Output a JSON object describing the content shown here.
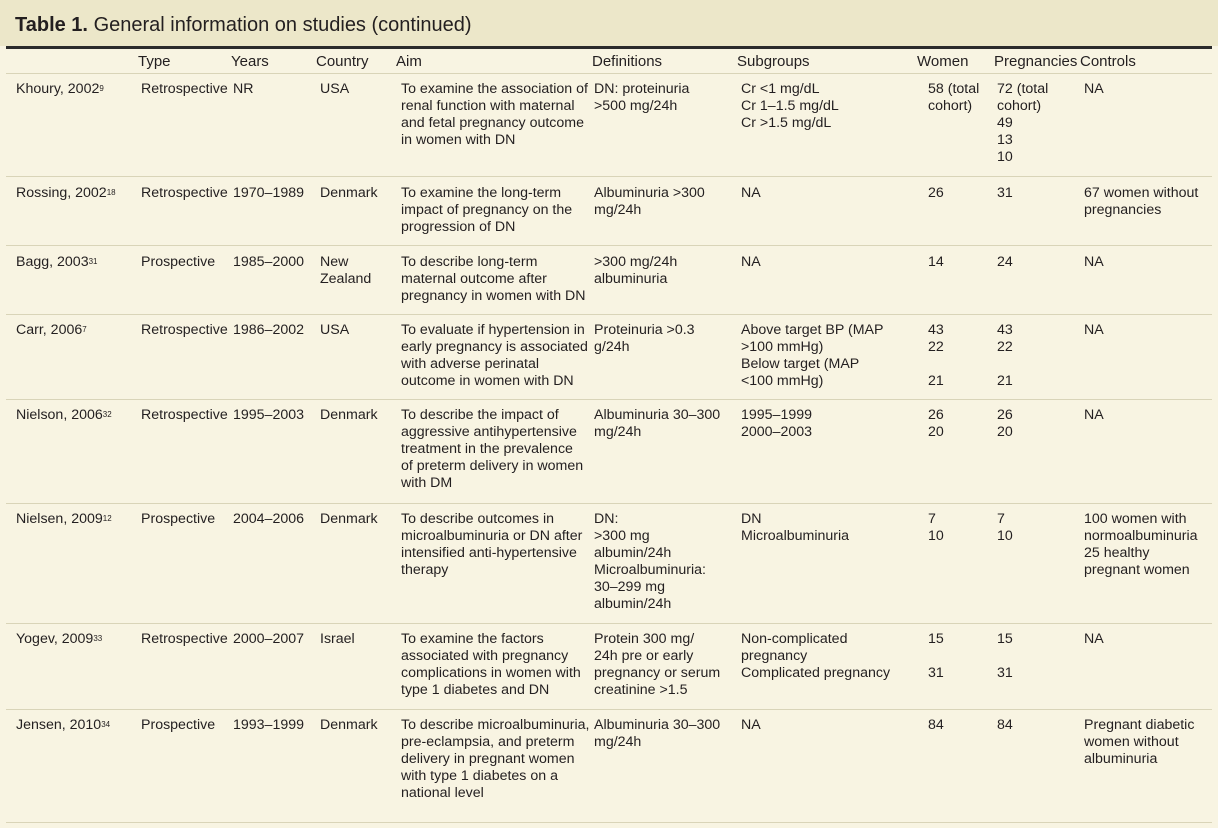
{
  "title": {
    "label": "Table 1.",
    "text": "General information on studies (continued)"
  },
  "headers": [
    "",
    "Type",
    "Years",
    "Country",
    "Aim",
    "Definitions",
    "Subgroups",
    "Women",
    "Pregnancies",
    "Controls"
  ],
  "rows": [
    {
      "study": "Khoury, 2002",
      "ref": "9",
      "type": [
        "Retrospective"
      ],
      "years": [
        "NR"
      ],
      "country": [
        "USA"
      ],
      "aim": [
        "To examine the association of",
        "renal function with maternal",
        "and fetal pregnancy outcome",
        "in women with DN"
      ],
      "definitions": [
        "DN: proteinuria",
        ">500 mg/24h"
      ],
      "subgroups": [
        "Cr <1 mg/dL",
        "Cr 1–1.5 mg/dL",
        "Cr >1.5 mg/dL"
      ],
      "women": [
        "58 (total",
        "cohort)"
      ],
      "pregnancies": [
        "72 (total",
        "cohort)",
        "49",
        "13",
        "10"
      ],
      "controls": [
        "NA"
      ]
    },
    {
      "study": "Rossing, 2002",
      "ref": "18",
      "type": [
        "Retrospective"
      ],
      "years": [
        "1970–1989"
      ],
      "country": [
        "Denmark"
      ],
      "aim": [
        "To examine the long-term",
        "impact of pregnancy on the",
        "progression of DN"
      ],
      "definitions": [
        "Albuminuria >300",
        "mg/24h"
      ],
      "subgroups": [
        "NA"
      ],
      "women": [
        "26"
      ],
      "pregnancies": [
        "31"
      ],
      "controls": [
        "67 women without",
        "pregnancies"
      ]
    },
    {
      "study": "Bagg, 2003",
      "ref": "31",
      "type": [
        "Prospective"
      ],
      "years": [
        "1985–2000"
      ],
      "country": [
        "New",
        "Zealand"
      ],
      "aim": [
        "To describe long-term",
        "maternal outcome after",
        "pregnancy in women with DN"
      ],
      "definitions": [
        ">300 mg/24h",
        "albuminuria"
      ],
      "subgroups": [
        "NA"
      ],
      "women": [
        "14"
      ],
      "pregnancies": [
        "24"
      ],
      "controls": [
        "NA"
      ]
    },
    {
      "study": "Carr, 2006",
      "ref": "7",
      "type": [
        "Retrospective"
      ],
      "years": [
        "1986–2002"
      ],
      "country": [
        "USA"
      ],
      "aim": [
        "To evaluate if hypertension in",
        "early pregnancy is associated",
        "with adverse perinatal",
        "outcome in women with DN"
      ],
      "definitions": [
        "Proteinuria >0.3",
        "g/24h"
      ],
      "subgroups": [
        "Above target BP (MAP",
        ">100 mmHg)",
        "Below target (MAP",
        "<100 mmHg)"
      ],
      "women": [
        "43",
        "22",
        "",
        "21"
      ],
      "pregnancies": [
        "43",
        "22",
        "",
        "21"
      ],
      "controls": [
        "NA"
      ]
    },
    {
      "study": "Nielson, 2006",
      "ref": "32",
      "type": [
        "Retrospective"
      ],
      "years": [
        "1995–2003"
      ],
      "country": [
        "Denmark"
      ],
      "aim": [
        "To describe the impact of",
        "aggressive antihypertensive",
        "treatment in the prevalence",
        "of preterm delivery in women",
        "with DM"
      ],
      "definitions": [
        "Albuminuria 30–300",
        "mg/24h"
      ],
      "subgroups": [
        "1995–1999",
        "2000–2003"
      ],
      "women": [
        "26",
        "20"
      ],
      "pregnancies": [
        "26",
        "20"
      ],
      "controls": [
        "NA"
      ]
    },
    {
      "study": "Nielsen, 2009",
      "ref": "12",
      "type": [
        "Prospective"
      ],
      "years": [
        "2004–2006"
      ],
      "country": [
        "Denmark"
      ],
      "aim": [
        "To describe outcomes in",
        "microalbuminuria or DN after",
        "intensified anti-hypertensive",
        "therapy"
      ],
      "definitions": [
        "DN:",
        ">300 mg",
        "albumin/24h",
        "Microalbuminuria:",
        "30–299 mg",
        "albumin/24h"
      ],
      "subgroups": [
        "DN",
        "Microalbuminuria"
      ],
      "women": [
        "7",
        "10"
      ],
      "pregnancies": [
        "7",
        "10"
      ],
      "controls": [
        "100 women with",
        "normoalbuminuria",
        "25 healthy",
        "pregnant women"
      ]
    },
    {
      "study": "Yogev, 2009",
      "ref": "33",
      "type": [
        "Retrospective"
      ],
      "years": [
        "2000–2007"
      ],
      "country": [
        "Israel"
      ],
      "aim": [
        "To examine the factors",
        "associated with pregnancy",
        "complications in women with",
        "type 1 diabetes and DN"
      ],
      "definitions": [
        "Protein 300 mg/",
        "24h pre or early",
        "pregnancy or serum",
        "creatinine >1.5"
      ],
      "subgroups": [
        "Non-complicated",
        "pregnancy",
        "Complicated pregnancy"
      ],
      "women": [
        "15",
        "",
        "31"
      ],
      "pregnancies": [
        "15",
        "",
        "31"
      ],
      "controls": [
        "NA"
      ]
    },
    {
      "study": "Jensen, 2010",
      "ref": "34",
      "type": [
        "Prospective"
      ],
      "years": [
        "1993–1999"
      ],
      "country": [
        "Denmark"
      ],
      "aim": [
        "To describe microalbuminuria,",
        "pre-eclampsia, and preterm",
        "delivery in pregnant women",
        "with type 1 diabetes on a",
        "national level"
      ],
      "definitions": [
        "Albuminuria 30–300",
        "mg/24h"
      ],
      "subgroups": [
        "NA"
      ],
      "women": [
        "84"
      ],
      "pregnancies": [
        "84"
      ],
      "controls": [
        "Pregnant diabetic",
        "women without",
        "albuminuria"
      ]
    }
  ]
}
